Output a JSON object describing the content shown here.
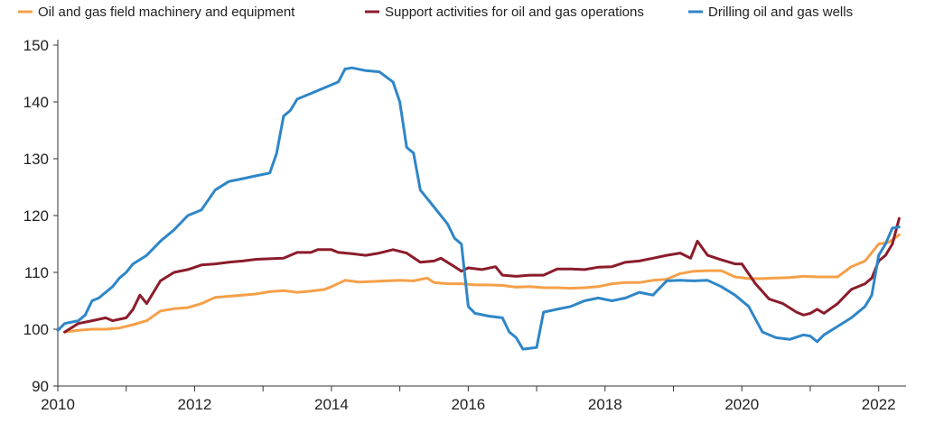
{
  "chart_data": {
    "type": "line",
    "title": "",
    "xlabel": "",
    "ylabel": "",
    "xlim": [
      2010,
      2022.4
    ],
    "ylim": [
      90,
      150
    ],
    "x_ticks": [
      2010,
      2012,
      2014,
      2016,
      2018,
      2020,
      2022
    ],
    "x_tick_labels": [
      "2010",
      "2012",
      "2014",
      "2016",
      "2018",
      "2020",
      "2022"
    ],
    "y_ticks": [
      90,
      100,
      110,
      120,
      130,
      140,
      150
    ],
    "y_tick_labels": [
      "90",
      "100",
      "110",
      "120",
      "130",
      "140",
      "150"
    ],
    "grid": false,
    "legend_position": "top",
    "series": [
      {
        "name": "Oil and gas field machinery and equipment",
        "color": "#F5A04A",
        "x": [
          2010.1,
          2010.3,
          2010.5,
          2010.7,
          2010.9,
          2011.1,
          2011.3,
          2011.5,
          2011.7,
          2011.9,
          2012.1,
          2012.3,
          2012.5,
          2012.7,
          2012.9,
          2013.1,
          2013.3,
          2013.5,
          2013.7,
          2013.9,
          2014.0,
          2014.2,
          2014.4,
          2014.6,
          2014.8,
          2015.0,
          2015.2,
          2015.4,
          2015.5,
          2015.7,
          2015.9,
          2016.1,
          2016.3,
          2016.5,
          2016.7,
          2016.9,
          2017.1,
          2017.3,
          2017.5,
          2017.7,
          2017.9,
          2018.1,
          2018.3,
          2018.5,
          2018.7,
          2018.9,
          2019.1,
          2019.3,
          2019.5,
          2019.7,
          2019.9,
          2020.1,
          2020.3,
          2020.5,
          2020.7,
          2020.9,
          2021.1,
          2021.3,
          2021.4,
          2021.6,
          2021.8,
          2022.0,
          2022.15,
          2022.3
        ],
        "values": [
          99.5,
          99.8,
          100.0,
          100.0,
          100.2,
          100.8,
          101.5,
          103.2,
          103.6,
          103.8,
          104.5,
          105.6,
          105.8,
          106.0,
          106.2,
          106.6,
          106.8,
          106.5,
          106.7,
          107.0,
          107.5,
          108.6,
          108.3,
          108.4,
          108.5,
          108.6,
          108.5,
          109.0,
          108.2,
          108.0,
          108.0,
          107.8,
          107.8,
          107.7,
          107.4,
          107.5,
          107.3,
          107.3,
          107.2,
          107.3,
          107.5,
          108.0,
          108.2,
          108.2,
          108.6,
          108.8,
          109.8,
          110.2,
          110.3,
          110.3,
          109.2,
          108.9,
          108.9,
          109.0,
          109.1,
          109.3,
          109.2,
          109.2,
          109.2,
          111.0,
          112.0,
          115.0,
          115.3,
          116.6
        ]
      },
      {
        "name": "Support activities for oil and gas operations",
        "color": "#8B1C2B",
        "x": [
          2010.1,
          2010.3,
          2010.5,
          2010.7,
          2010.8,
          2011.0,
          2011.1,
          2011.2,
          2011.3,
          2011.5,
          2011.7,
          2011.9,
          2012.1,
          2012.3,
          2012.5,
          2012.7,
          2012.9,
          2013.1,
          2013.3,
          2013.5,
          2013.7,
          2013.8,
          2014.0,
          2014.1,
          2014.3,
          2014.5,
          2014.7,
          2014.9,
          2015.1,
          2015.3,
          2015.5,
          2015.6,
          2015.8,
          2015.9,
          2016.0,
          2016.2,
          2016.4,
          2016.5,
          2016.7,
          2016.9,
          2017.1,
          2017.3,
          2017.5,
          2017.7,
          2017.9,
          2018.1,
          2018.3,
          2018.5,
          2018.7,
          2018.9,
          2019.1,
          2019.25,
          2019.35,
          2019.5,
          2019.7,
          2019.9,
          2020.0,
          2020.2,
          2020.4,
          2020.6,
          2020.8,
          2020.9,
          2021.0,
          2021.1,
          2021.2,
          2021.4,
          2021.6,
          2021.8,
          2021.9,
          2022.0,
          2022.1,
          2022.2,
          2022.3
        ],
        "values": [
          99.5,
          101.0,
          101.5,
          102.0,
          101.5,
          102.0,
          103.5,
          106.0,
          104.5,
          108.5,
          110.0,
          110.5,
          111.3,
          111.5,
          111.8,
          112.0,
          112.3,
          112.4,
          112.5,
          113.5,
          113.5,
          114.0,
          114.0,
          113.5,
          113.3,
          113.0,
          113.4,
          114.0,
          113.4,
          111.8,
          112.0,
          112.5,
          111.0,
          110.2,
          110.8,
          110.5,
          111.0,
          109.5,
          109.3,
          109.5,
          109.5,
          110.6,
          110.6,
          110.5,
          110.9,
          111.0,
          111.8,
          112.0,
          112.5,
          113.0,
          113.4,
          112.5,
          115.5,
          113.0,
          112.2,
          111.5,
          111.5,
          108.0,
          105.3,
          104.5,
          103.0,
          102.5,
          102.8,
          103.5,
          102.8,
          104.5,
          107.0,
          108.0,
          109.0,
          112.0,
          113.0,
          115.0,
          119.5
        ]
      },
      {
        "name": "Drilling oil and gas wells",
        "color": "#2E86C8",
        "x": [
          2010.0,
          2010.1,
          2010.3,
          2010.4,
          2010.5,
          2010.6,
          2010.8,
          2010.9,
          2011.0,
          2011.1,
          2011.3,
          2011.5,
          2011.7,
          2011.9,
          2012.1,
          2012.3,
          2012.5,
          2012.7,
          2012.9,
          2013.1,
          2013.2,
          2013.3,
          2013.4,
          2013.5,
          2013.7,
          2013.9,
          2014.0,
          2014.1,
          2014.2,
          2014.3,
          2014.5,
          2014.7,
          2014.9,
          2015.0,
          2015.1,
          2015.2,
          2015.3,
          2015.5,
          2015.7,
          2015.8,
          2015.9,
          2016.0,
          2016.1,
          2016.3,
          2016.5,
          2016.6,
          2016.7,
          2016.8,
          2017.0,
          2017.1,
          2017.3,
          2017.5,
          2017.7,
          2017.9,
          2018.1,
          2018.3,
          2018.5,
          2018.7,
          2018.9,
          2019.1,
          2019.3,
          2019.5,
          2019.7,
          2019.9,
          2020.1,
          2020.3,
          2020.5,
          2020.7,
          2020.9,
          2021.0,
          2021.1,
          2021.2,
          2021.4,
          2021.6,
          2021.8,
          2021.9,
          2022.0,
          2022.1,
          2022.2,
          2022.3
        ],
        "values": [
          99.8,
          101.0,
          101.5,
          102.5,
          105.0,
          105.5,
          107.5,
          109.0,
          110.0,
          111.5,
          113.0,
          115.5,
          117.5,
          120.0,
          121.0,
          124.5,
          126.0,
          126.5,
          127.0,
          127.5,
          131.0,
          137.5,
          138.5,
          140.5,
          141.5,
          142.5,
          143.0,
          143.5,
          145.8,
          146.0,
          145.5,
          145.3,
          143.5,
          140.0,
          132.0,
          131.0,
          124.5,
          121.5,
          118.5,
          116.0,
          115.0,
          104.0,
          102.8,
          102.3,
          102.0,
          99.5,
          98.5,
          96.5,
          96.8,
          103.0,
          103.5,
          104.0,
          105.0,
          105.5,
          105.0,
          105.5,
          106.5,
          106.0,
          108.5,
          108.6,
          108.5,
          108.6,
          107.5,
          106.0,
          104.0,
          99.5,
          98.5,
          98.2,
          99.0,
          98.8,
          97.8,
          99.0,
          100.5,
          102.0,
          104.0,
          106.0,
          113.0,
          115.0,
          117.8,
          118.0
        ]
      }
    ]
  }
}
